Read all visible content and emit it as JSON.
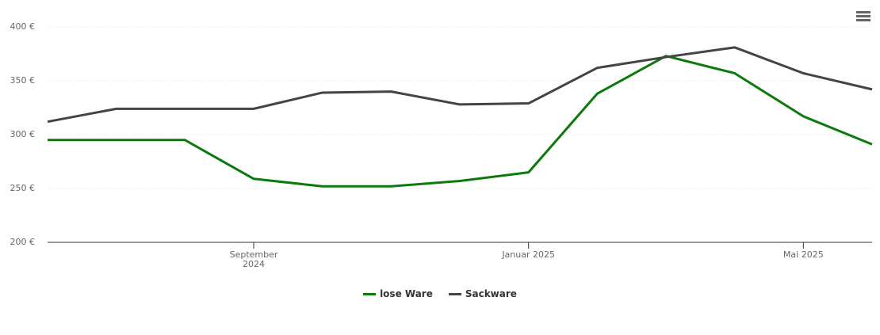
{
  "chart_data": {
    "type": "line",
    "x": [
      "2024-06",
      "2024-07",
      "2024-08",
      "2024-09",
      "2024-10",
      "2024-11",
      "2024-12",
      "2025-01",
      "2025-02",
      "2025-03",
      "2025-04",
      "2025-05",
      "2025-06"
    ],
    "series": [
      {
        "name": "lose Ware",
        "color": "#0b7a0b",
        "values": [
          295,
          295,
          295,
          259,
          252,
          252,
          257,
          265,
          338,
          373,
          357,
          317,
          291
        ]
      },
      {
        "name": "Sackware",
        "color": "#434348",
        "values": [
          312,
          324,
          324,
          324,
          339,
          340,
          328,
          329,
          362,
          372,
          381,
          357,
          342
        ]
      }
    ],
    "xlim": [
      "2024-06",
      "2025-06"
    ],
    "xticks": [
      {
        "value": "2024-09",
        "label": "September 2024"
      },
      {
        "value": "2025-01",
        "label": "Januar 2025"
      },
      {
        "value": "2025-05",
        "label": "Mai 2025"
      }
    ],
    "ylim": [
      200,
      400
    ],
    "yticks": [
      {
        "value": 200,
        "label": "200 €"
      },
      {
        "value": 250,
        "label": "250 €"
      },
      {
        "value": 300,
        "label": "300 €"
      },
      {
        "value": 350,
        "label": "350 €"
      },
      {
        "value": 400,
        "label": "400 €"
      }
    ],
    "grid": true,
    "legend": "bottom"
  }
}
